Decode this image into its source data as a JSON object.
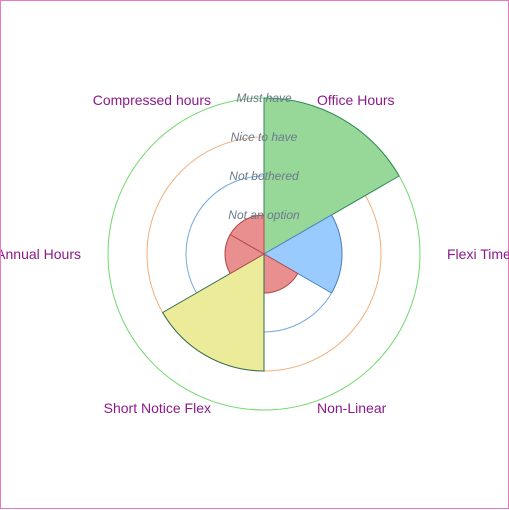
{
  "chart_data": {
    "type": "polar-area",
    "levels": [
      "Not an option",
      "Not bothered",
      "Nice to have",
      "Must have"
    ],
    "ring_colors": [
      "#e98a8a",
      "#74a9de",
      "#f2b07a",
      "#71d86a"
    ],
    "categories": [
      "Office Hours",
      "Flexi Time",
      "Non-Linear",
      "Short Notice Flex",
      "Annual Hours",
      "Compressed hours"
    ],
    "values": [
      4,
      2,
      1,
      3,
      1,
      1
    ],
    "value_colors": {
      "1": {
        "fill": "#e98f8f",
        "stroke": "#b34a4a"
      },
      "2": {
        "fill": "#99cbff",
        "stroke": "#4a82c0"
      },
      "3": {
        "fill": "#ebeb99",
        "stroke": "#2e6b50"
      },
      "4": {
        "fill": "#97d798",
        "stroke": "#2e8b57"
      }
    }
  }
}
